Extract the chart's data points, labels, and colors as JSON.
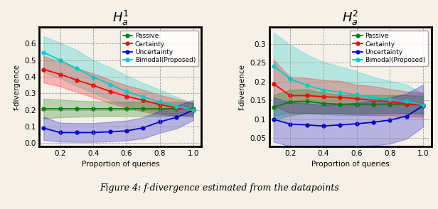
{
  "x": [
    0.1,
    0.2,
    0.3,
    0.4,
    0.5,
    0.6,
    0.7,
    0.8,
    0.9,
    1.0
  ],
  "plot1": {
    "title": "$H_a^1$",
    "ylabel": "f-divergence",
    "xlabel": "Proportion of queries",
    "ylim": [
      -0.02,
      0.7
    ],
    "yticks": [
      0.0,
      0.1,
      0.2,
      0.3,
      0.4,
      0.5,
      0.6
    ],
    "passive": [
      0.205,
      0.205,
      0.205,
      0.205,
      0.205,
      0.205,
      0.205,
      0.205,
      0.205,
      0.205
    ],
    "passive_lo": [
      0.148,
      0.155,
      0.158,
      0.162,
      0.163,
      0.163,
      0.163,
      0.163,
      0.165,
      0.172
    ],
    "passive_hi": [
      0.268,
      0.262,
      0.256,
      0.252,
      0.25,
      0.248,
      0.248,
      0.248,
      0.248,
      0.242
    ],
    "certainty": [
      0.445,
      0.415,
      0.38,
      0.348,
      0.312,
      0.282,
      0.258,
      0.232,
      0.213,
      0.2
    ],
    "certainty_lo": [
      0.365,
      0.342,
      0.308,
      0.275,
      0.242,
      0.212,
      0.19,
      0.172,
      0.165,
      0.16
    ],
    "certainty_hi": [
      0.525,
      0.49,
      0.452,
      0.42,
      0.382,
      0.348,
      0.322,
      0.29,
      0.265,
      0.242
    ],
    "uncertainty": [
      0.09,
      0.063,
      0.063,
      0.063,
      0.068,
      0.073,
      0.092,
      0.128,
      0.155,
      0.198
    ],
    "uncertainty_lo": [
      0.018,
      0.008,
      0.006,
      0.006,
      0.01,
      0.015,
      0.028,
      0.062,
      0.088,
      0.138
    ],
    "uncertainty_hi": [
      0.158,
      0.122,
      0.12,
      0.12,
      0.128,
      0.135,
      0.155,
      0.195,
      0.225,
      0.26
    ],
    "bimodal": [
      0.548,
      0.5,
      0.45,
      0.398,
      0.355,
      0.31,
      0.278,
      0.248,
      0.22,
      0.2
    ],
    "bimodal_lo": [
      0.428,
      0.392,
      0.345,
      0.302,
      0.26,
      0.225,
      0.202,
      0.182,
      0.168,
      0.16
    ],
    "bimodal_hi": [
      0.645,
      0.605,
      0.562,
      0.5,
      0.458,
      0.408,
      0.362,
      0.322,
      0.278,
      0.242
    ]
  },
  "plot2": {
    "title": "$H_a^2$",
    "ylabel": "f-divergence",
    "xlabel": "Proportion of queries",
    "ylim": [
      0.028,
      0.345
    ],
    "yticks": [
      0.05,
      0.1,
      0.15,
      0.2,
      0.25,
      0.3
    ],
    "passive": [
      0.132,
      0.146,
      0.148,
      0.142,
      0.14,
      0.14,
      0.14,
      0.14,
      0.14,
      0.138
    ],
    "passive_lo": [
      0.098,
      0.11,
      0.116,
      0.116,
      0.116,
      0.116,
      0.116,
      0.116,
      0.116,
      0.116
    ],
    "passive_hi": [
      0.165,
      0.178,
      0.18,
      0.17,
      0.166,
      0.164,
      0.164,
      0.164,
      0.164,
      0.162
    ],
    "certainty": [
      0.194,
      0.163,
      0.163,
      0.16,
      0.158,
      0.155,
      0.15,
      0.147,
      0.14,
      0.138
    ],
    "certainty_lo": [
      0.136,
      0.116,
      0.116,
      0.115,
      0.115,
      0.112,
      0.11,
      0.11,
      0.108,
      0.106
    ],
    "certainty_hi": [
      0.258,
      0.212,
      0.21,
      0.204,
      0.202,
      0.192,
      0.188,
      0.18,
      0.174,
      0.17
    ],
    "uncertainty": [
      0.1,
      0.087,
      0.085,
      0.082,
      0.085,
      0.088,
      0.092,
      0.098,
      0.108,
      0.136
    ],
    "uncertainty_lo": [
      0.04,
      0.028,
      0.025,
      0.022,
      0.025,
      0.028,
      0.03,
      0.035,
      0.048,
      0.08
    ],
    "uncertainty_hi": [
      0.158,
      0.145,
      0.142,
      0.138,
      0.14,
      0.144,
      0.15,
      0.158,
      0.168,
      0.192
    ],
    "bimodal": [
      0.242,
      0.207,
      0.19,
      0.178,
      0.172,
      0.165,
      0.158,
      0.152,
      0.148,
      0.138
    ],
    "bimodal_lo": [
      0.108,
      0.118,
      0.116,
      0.113,
      0.11,
      0.11,
      0.113,
      0.116,
      0.116,
      0.112
    ],
    "bimodal_hi": [
      0.33,
      0.298,
      0.272,
      0.252,
      0.24,
      0.228,
      0.212,
      0.202,
      0.192,
      0.168
    ]
  },
  "colors": {
    "passive": "#008000",
    "certainty": "#ff0000",
    "uncertainty": "#0000cc",
    "bimodal": "#00cccc"
  },
  "bg_color": "#f5f0e8",
  "alpha_fill": 0.25,
  "caption": "Figure 4: f-divergence estimated from the datapoints"
}
